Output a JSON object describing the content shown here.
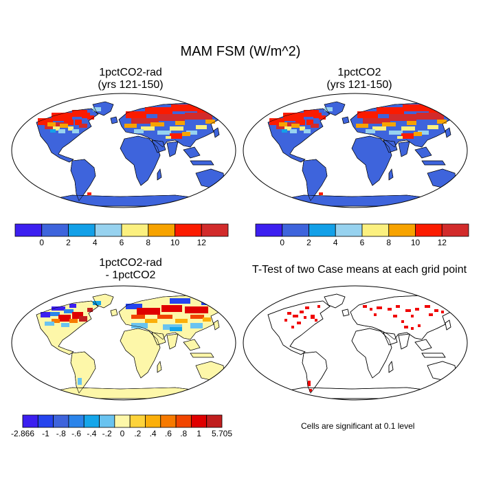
{
  "figure": {
    "title": "MAM FSM (W/m^2)"
  },
  "panels": [
    {
      "title_line1": "1pctCO2-rad",
      "title_line2": "(yrs 121-150)"
    },
    {
      "title_line1": "1pctCO2",
      "title_line2": "(yrs 121-150)"
    },
    {
      "title_line1": "1pctCO2-rad",
      "title_line2": "- 1pctCO2"
    },
    {
      "title_line1": "T-Test of two Case means at each grid point",
      "title_line2": ""
    }
  ],
  "colorbar_abs": {
    "colors": [
      "#3c1ff0",
      "#3e64dc",
      "#13a0e8",
      "#97d2ef",
      "#fbf07f",
      "#f7a300",
      "#fb1b00",
      "#d22b2b"
    ],
    "labels": [
      "0",
      "2",
      "4",
      "6",
      "8",
      "10",
      "12"
    ]
  },
  "colorbar_diff": {
    "colors": [
      "#3c1ff0",
      "#2544ee",
      "#3e64dc",
      "#2b84ea",
      "#15a6ea",
      "#69c3f0",
      "#fdf7a9",
      "#fdd33a",
      "#fbaf0a",
      "#f77a00",
      "#f14500",
      "#df0000",
      "#c01e1e"
    ],
    "labels": [
      "-2.866",
      "-1",
      "-.8",
      "-.6",
      "-.4",
      "-.2",
      "0",
      ".2",
      ".4",
      ".6",
      ".8",
      "1",
      "5.705"
    ]
  },
  "significance_note": "Cells are significant at 0.1 level",
  "map_colors": {
    "land_abs": "#3e64dc",
    "land_diff": "#fdf7a9",
    "high": "#fb1b00",
    "dark_high": "#d22b2b",
    "orange": "#f7a300",
    "yellow": "#fbf07f",
    "light_blue": "#97d2ef",
    "cyan": "#13a0e8",
    "sig": "#f00000"
  }
}
